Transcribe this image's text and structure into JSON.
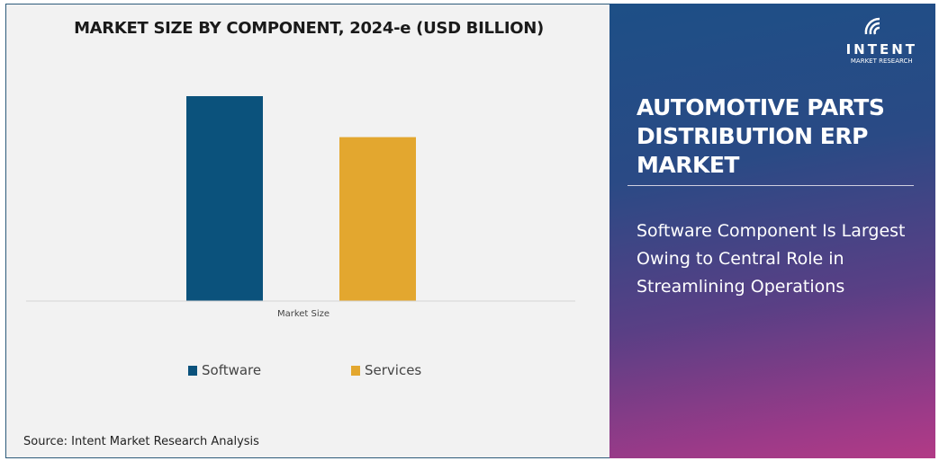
{
  "chart_data": {
    "type": "bar",
    "title": "MARKET SIZE BY COMPONENT, 2024-e (USD BILLION)",
    "categories": [
      "Market Size"
    ],
    "series": [
      {
        "name": "Software",
        "values": [
          100
        ],
        "color": "#0b527c"
      },
      {
        "name": "Services",
        "values": [
          80
        ],
        "color": "#e3a72f"
      }
    ],
    "ylim": [
      0,
      100
    ],
    "grid": false,
    "legend": "bottom",
    "yaxis_labels": false
  },
  "source": "Source: Intent Market Research Analysis",
  "logo": {
    "name": "INTENT",
    "sub": "MARKET RESEARCH"
  },
  "panel": {
    "title": "AUTOMOTIVE PARTS DISTRIBUTION ERP MARKET",
    "subtitle": "Software Component Is Largest Owing to Central Role in Streamlining Operations"
  }
}
